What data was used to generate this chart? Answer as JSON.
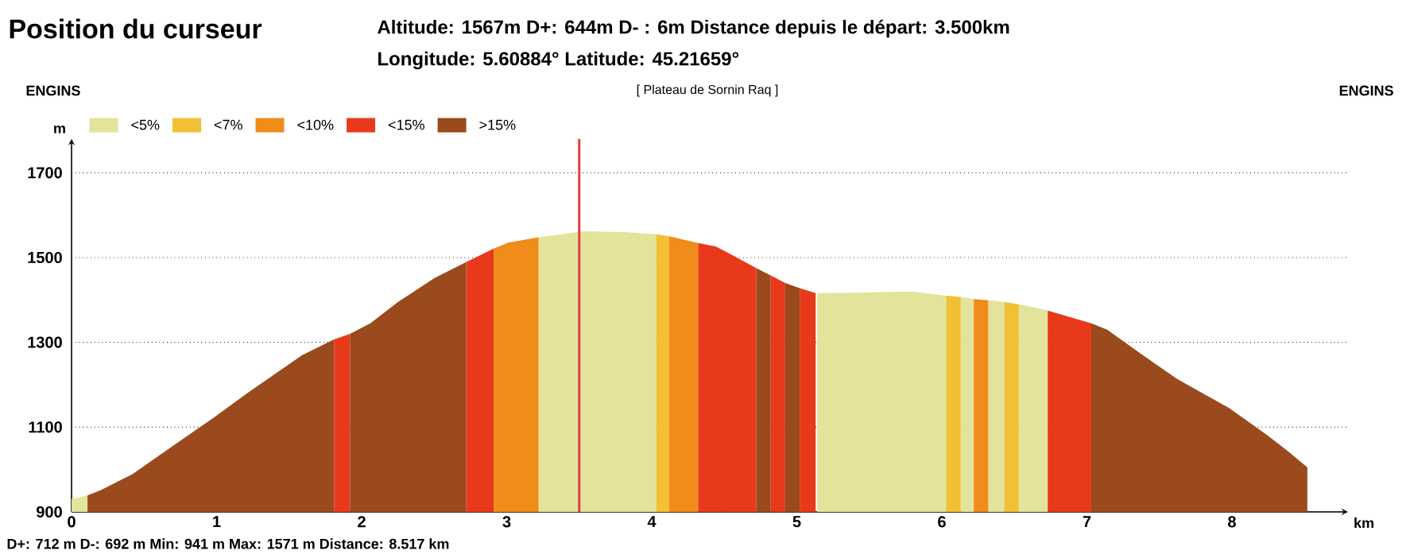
{
  "chart_data": {
    "type": "area",
    "title": "Position du curseur",
    "subtitle": "Altitude: 1567m   D+: 644m   D- : 6m   Distance depuis le départ: 3.500km",
    "xlabel": "km",
    "ylabel": "m",
    "annotations": [
      "Longitude: 5.60884°   Latitude: 45.21659°",
      "ENGINS",
      "ENGINS",
      "[ Plateau de  Sornin Raq ]",
      "D+: 712 m     D-: 692 m     Min: 941 m     Max: 1571 m     Distance: 8.517 km"
    ],
    "series": [
      {
        "name": "<5%",
        "color": "#e3e39b",
        "x": [
          0,
          0.11,
          null,
          3.22,
          3.53,
          3.82,
          4.03,
          null,
          5.14,
          5.42,
          5.79,
          6.01,
          6.03,
          null,
          6.13,
          6.22,
          null,
          6.32,
          6.43,
          null,
          6.53,
          6.72,
          6.73
        ],
        "values": [
          930,
          939,
          null,
          1548,
          1562,
          1560,
          1555,
          null,
          1416,
          1417,
          1420,
          1411,
          1410,
          null,
          1407,
          1402,
          null,
          1399,
          1395,
          null,
          1390,
          1376,
          1375
        ]
      },
      {
        "name": "<7%",
        "color": "#f2c035",
        "x": [
          4.03,
          4.12,
          null,
          6.03,
          6.13,
          null,
          6.43,
          6.53
        ],
        "values": [
          1555,
          1550,
          null,
          1410,
          1407,
          null,
          1395,
          1390
        ]
      },
      {
        "name": "<10%",
        "color": "#f08c1a",
        "x": [
          2.91,
          3.01,
          3.22,
          null,
          4.12,
          4.32,
          null,
          6.22,
          6.32
        ],
        "values": [
          1521,
          1535,
          1548,
          null,
          1550,
          1534,
          null,
          1402,
          1399
        ]
      },
      {
        "name": "<15%",
        "color": "#e8391a",
        "x": [
          1.81,
          1.92,
          null,
          2.72,
          2.91,
          null,
          4.32,
          4.44,
          4.51,
          4.72,
          null,
          4.82,
          4.92,
          null,
          5.02,
          5.13,
          null,
          6.73,
          7.03
        ],
        "values": [
          1307,
          1320,
          null,
          1489,
          1521,
          null,
          1534,
          1526,
          1514,
          1475,
          null,
          1458,
          1440,
          null,
          1428,
          1416,
          null,
          1375,
          1345
        ]
      },
      {
        "name": ">15%",
        "color": "#9a4a1c",
        "x": [
          0.11,
          0.2,
          0.42,
          0.6,
          0.97,
          1.22,
          1.59,
          1.81,
          null,
          1.92,
          2.06,
          2.25,
          2.5,
          2.72,
          null,
          4.72,
          4.82,
          null,
          4.92,
          5.02,
          null,
          7.03,
          7.14,
          7.36,
          7.62,
          7.98,
          8.24,
          8.38,
          8.52
        ],
        "values": [
          939,
          951,
          989,
          1032,
          1120,
          1182,
          1270,
          1307,
          null,
          1320,
          1345,
          1395,
          1451,
          1489,
          null,
          1475,
          1458,
          null,
          1440,
          1428,
          null,
          1345,
          1330,
          1276,
          1214,
          1145,
          1082,
          1045,
          1005
        ]
      }
    ],
    "xlim": [
      0,
      8.8
    ],
    "ylim": [
      900,
      1780
    ],
    "xticks": [
      0,
      1,
      2,
      3,
      4,
      5,
      6,
      7,
      8
    ],
    "yticks": [
      900,
      1100,
      1300,
      1500,
      1700
    ],
    "grid": "y",
    "legend": "top left",
    "marker": "none",
    "ref_lines": [
      {
        "axis": "x",
        "value": 3.5,
        "color": "#e04040"
      }
    ]
  }
}
